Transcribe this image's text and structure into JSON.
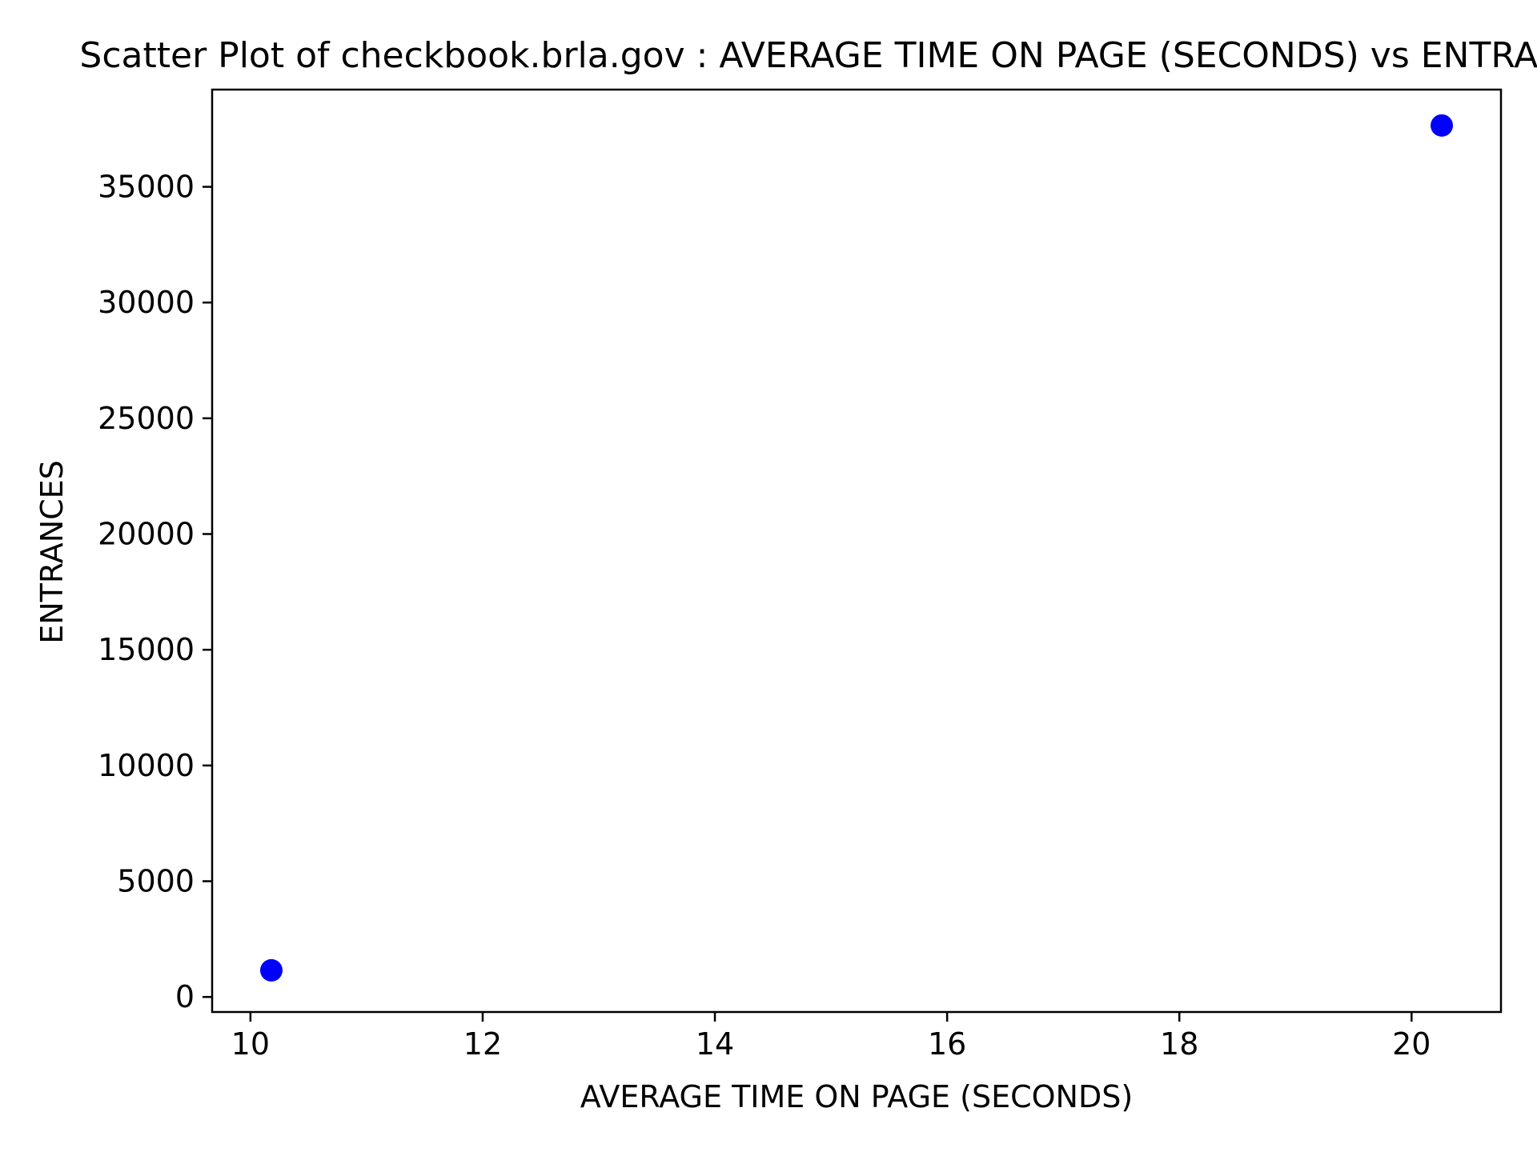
{
  "chart_data": {
    "type": "scatter",
    "title": "Scatter Plot of checkbook.brla.gov : AVERAGE TIME ON PAGE (SECONDS) vs ENTRANCES",
    "xlabel": "AVERAGE TIME ON PAGE (SECONDS)",
    "ylabel": "ENTRANCES",
    "xlim": [
      9.67,
      20.77
    ],
    "ylim": [
      -650,
      39200
    ],
    "x_ticks": [
      10,
      12,
      14,
      16,
      18,
      20
    ],
    "y_ticks": [
      0,
      5000,
      10000,
      15000,
      20000,
      25000,
      30000,
      35000
    ],
    "grid": false,
    "point_color": "#0000ff",
    "series": [
      {
        "points": [
          {
            "x": 10.18,
            "y": 1150
          },
          {
            "x": 20.26,
            "y": 37650
          }
        ]
      }
    ]
  }
}
